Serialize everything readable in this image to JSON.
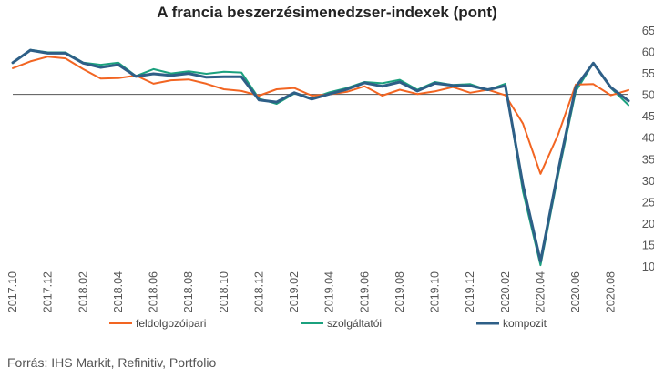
{
  "chart_data": {
    "type": "line",
    "title": "A francia beszerzésimenedzser-indexek (pont)",
    "source": "Forrás: IHS Markit, Refinitiv, Portfolio",
    "ylim": [
      10,
      65
    ],
    "yticks": [
      10,
      15,
      20,
      25,
      30,
      35,
      40,
      45,
      50,
      55,
      60,
      65
    ],
    "y_axis_side": "right",
    "reference_line": 50,
    "grid": false,
    "legend_position": "bottom",
    "x": [
      "2017.10",
      "2017.11",
      "2017.12",
      "2018.01",
      "2018.02",
      "2018.03",
      "2018.04",
      "2018.05",
      "2018.06",
      "2018.07",
      "2018.08",
      "2018.09",
      "2018.10",
      "2018.11",
      "2018.12",
      "2019.01",
      "2019.02",
      "2019.03",
      "2019.04",
      "2019.05",
      "2019.06",
      "2019.07",
      "2019.08",
      "2019.09",
      "2019.10",
      "2019.11",
      "2019.12",
      "2020.01",
      "2020.02",
      "2020.03",
      "2020.04",
      "2020.05",
      "2020.06",
      "2020.07",
      "2020.08",
      "2020.09"
    ],
    "x_tick_labels": [
      "2017.10",
      "2017.12",
      "2018.02",
      "2018.04",
      "2018.06",
      "2018.08",
      "2018.10",
      "2018.12",
      "2019.02",
      "2019.04",
      "2019.06",
      "2019.08",
      "2019.10",
      "2019.12",
      "2020.02",
      "2020.04",
      "2020.06",
      "2020.08"
    ],
    "series": [
      {
        "name": "feldolgozóipari",
        "color": "#f26522",
        "values": [
          56.1,
          57.7,
          58.8,
          58.4,
          55.9,
          53.7,
          53.8,
          54.4,
          52.5,
          53.3,
          53.5,
          52.5,
          51.2,
          50.8,
          49.7,
          51.2,
          51.5,
          49.7,
          50.0,
          50.6,
          51.9,
          49.7,
          51.1,
          50.1,
          50.7,
          51.7,
          50.4,
          51.1,
          49.8,
          43.2,
          31.5,
          40.6,
          52.3,
          52.4,
          49.8,
          51.0
        ]
      },
      {
        "name": "szolgáltatói",
        "color": "#1ba17e",
        "values": [
          57.3,
          60.4,
          59.8,
          59.8,
          57.4,
          56.9,
          57.4,
          54.3,
          55.9,
          54.9,
          55.4,
          54.8,
          55.3,
          55.1,
          49.0,
          47.8,
          50.2,
          49.1,
          50.5,
          51.5,
          52.9,
          52.6,
          53.4,
          51.1,
          52.9,
          52.2,
          52.4,
          51.0,
          52.5,
          27.4,
          10.2,
          31.1,
          50.7,
          57.3,
          51.5,
          47.5
        ]
      },
      {
        "name": "kompozit",
        "color": "#2e5f87",
        "values": [
          57.4,
          60.3,
          59.6,
          59.6,
          57.3,
          56.3,
          56.9,
          54.2,
          54.8,
          54.4,
          54.9,
          54.0,
          54.1,
          54.1,
          48.7,
          48.2,
          50.4,
          48.9,
          50.1,
          51.2,
          52.7,
          51.9,
          52.9,
          50.8,
          52.6,
          52.1,
          52.0,
          51.1,
          52.0,
          28.9,
          11.1,
          32.1,
          51.7,
          57.3,
          51.6,
          48.5
        ]
      }
    ]
  }
}
